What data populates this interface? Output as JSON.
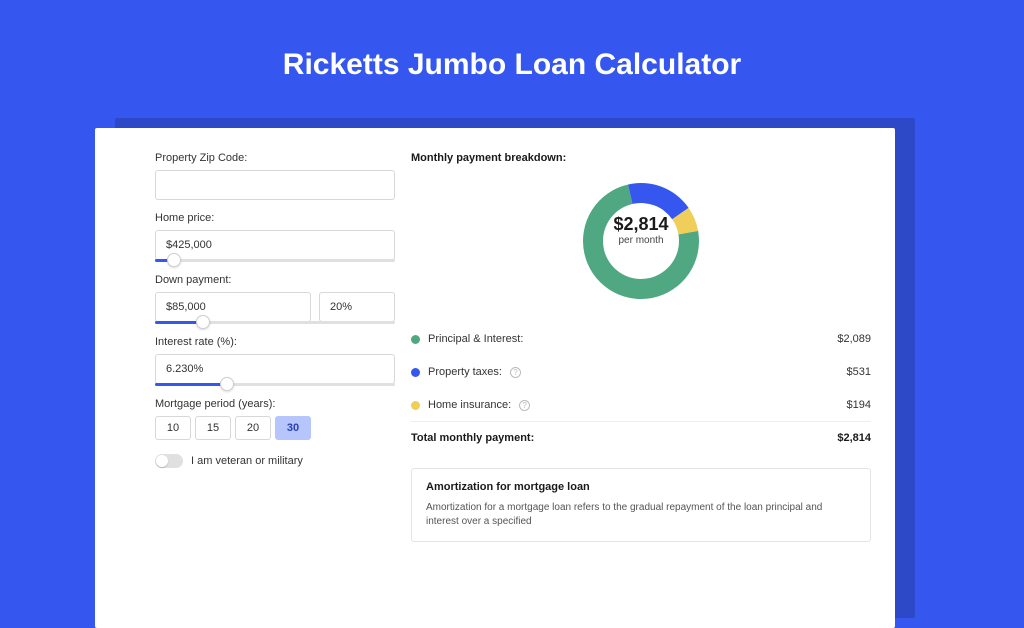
{
  "page": {
    "title": "Ricketts Jumbo Loan Calculator",
    "background_color": "#3557f0",
    "card_shadow_color": "#2e49c8",
    "card_color": "#ffffff"
  },
  "form": {
    "zip": {
      "label": "Property Zip Code:",
      "value": ""
    },
    "home_price": {
      "label": "Home price:",
      "value": "$425,000",
      "slider_fill_pct": 8
    },
    "down_payment": {
      "label": "Down payment:",
      "amount": "$85,000",
      "percent": "20%",
      "slider_fill_pct": 20
    },
    "interest_rate": {
      "label": "Interest rate (%):",
      "value": "6.230%",
      "slider_fill_pct": 30
    },
    "mortgage_period": {
      "label": "Mortgage period (years):",
      "options": [
        "10",
        "15",
        "20",
        "30"
      ],
      "selected_index": 3
    },
    "veteran": {
      "label": "I am veteran or military",
      "on": false
    }
  },
  "breakdown": {
    "title": "Monthly payment breakdown:",
    "donut": {
      "center_value": "$2,814",
      "center_sub": "per month",
      "slices": [
        {
          "label": "Principal & Interest",
          "color": "#50a882",
          "fraction": 0.742
        },
        {
          "label": "Property taxes",
          "color": "#3557f0",
          "fraction": 0.189
        },
        {
          "label": "Home insurance",
          "color": "#efcf5a",
          "fraction": 0.069
        }
      ],
      "radius": 58,
      "inner_radius": 38,
      "start_angle_deg": -10
    },
    "items": [
      {
        "dot_color": "#50a882",
        "label": "Principal & Interest:",
        "has_info": false,
        "amount": "$2,089"
      },
      {
        "dot_color": "#3557f0",
        "label": "Property taxes:",
        "has_info": true,
        "amount": "$531"
      },
      {
        "dot_color": "#efcf5a",
        "label": "Home insurance:",
        "has_info": true,
        "amount": "$194"
      }
    ],
    "total": {
      "label": "Total monthly payment:",
      "amount": "$2,814"
    }
  },
  "amortization": {
    "title": "Amortization for mortgage loan",
    "body": "Amortization for a mortgage loan refers to the gradual repayment of the loan principal and interest over a specified"
  }
}
